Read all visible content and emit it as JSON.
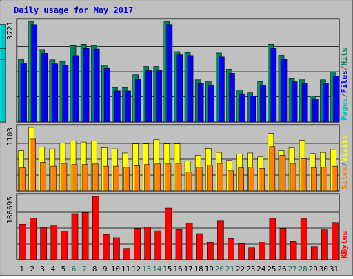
{
  "chart_data": {
    "type": "bar",
    "title": "Daily usage for May 2017",
    "x": [
      "1",
      "2",
      "3",
      "4",
      "5",
      "6",
      "7",
      "8",
      "9",
      "10",
      "11",
      "12",
      "13",
      "14",
      "15",
      "16",
      "17",
      "18",
      "19",
      "20",
      "21",
      "22",
      "23",
      "24",
      "25",
      "26",
      "27",
      "28",
      "29",
      "30",
      "31"
    ],
    "weekend_days": [
      "6",
      "7",
      "13",
      "14",
      "20",
      "21",
      "27",
      "28"
    ],
    "grid": true,
    "panels": [
      {
        "id": "pages-files-hits",
        "axis_max_label": "3721",
        "ylim": [
          0,
          3721
        ],
        "legend": [
          {
            "label": "Pages",
            "color": "#00c0c0"
          },
          {
            "label": "/",
            "color": "#505050"
          },
          {
            "label": "Files",
            "color": "#0000ff"
          },
          {
            "label": "/",
            "color": "#505050"
          },
          {
            "label": "Hits",
            "color": "#00805c"
          }
        ],
        "series": [
          {
            "name": "Hits",
            "color": "#00805c",
            "values": [
              2320,
              3721,
              2680,
              2300,
              2240,
              2820,
              2870,
              2830,
              2100,
              1270,
              1270,
              1740,
              2050,
              2050,
              3721,
              2600,
              2570,
              1560,
              1490,
              2550,
              1950,
              1190,
              1080,
              1500,
              2870,
              2460,
              1620,
              1560,
              950,
              1560,
              1850
            ]
          },
          {
            "name": "Files",
            "color": "#0000ff",
            "values": [
              2180,
              3600,
              2540,
              2150,
              2100,
              2450,
              2720,
              2700,
              1980,
              1150,
              1150,
              1580,
              1900,
              1900,
              3600,
              2480,
              2450,
              1420,
              1350,
              2400,
              1800,
              1040,
              960,
              1360,
              2720,
              2320,
              1490,
              1430,
              860,
              1420,
              1700
            ]
          },
          {
            "name": "Pages",
            "color": "#00c0c0",
            "values": [
              2180,
              3600,
              2540,
              2150,
              2100,
              2300,
              2720,
              2700,
              1980,
              1150,
              1150,
              1580,
              1900,
              1900,
              3600,
              2480,
              2450,
              1420,
              1350,
              2240,
              1800,
              1040,
              960,
              1360,
              2720,
              2320,
              1490,
              1430,
              860,
              1420,
              1700
            ]
          }
        ]
      },
      {
        "id": "sites-visits",
        "axis_max_label": "1103",
        "ylim": [
          0,
          1103
        ],
        "legend": [
          {
            "label": "Sites",
            "color": "#ff8000"
          },
          {
            "label": "/",
            "color": "#505050"
          },
          {
            "label": "Visits",
            "color": "#ffff00"
          }
        ],
        "series": [
          {
            "name": "Visits",
            "color": "#ffff00",
            "values": [
              700,
              1103,
              760,
              730,
              830,
              870,
              850,
              870,
              750,
              730,
              660,
              820,
              820,
              890,
              820,
              820,
              520,
              620,
              740,
              670,
              530,
              640,
              660,
              590,
              1000,
              700,
              750,
              880,
              650,
              670,
              720
            ]
          },
          {
            "name": "Sites",
            "color": "#ff8000",
            "values": [
              400,
              900,
              500,
              430,
              480,
              460,
              460,
              470,
              430,
              430,
              410,
              440,
              460,
              470,
              470,
              480,
              330,
              410,
              450,
              480,
              350,
              400,
              410,
              390,
              770,
              620,
              480,
              560,
              400,
              410,
              430
            ]
          }
        ]
      },
      {
        "id": "kbytes",
        "axis_max_label": "186695",
        "ylim": [
          0,
          186695
        ],
        "legend": [
          {
            "label": "KBytes",
            "color": "#ff0000"
          }
        ],
        "series": [
          {
            "name": "KBytes",
            "color": "#ff0000",
            "values": [
              105000,
              123000,
              95000,
              102000,
              84000,
              136000,
              139000,
              186695,
              75000,
              65000,
              33000,
              92000,
              96000,
              85000,
              152000,
              89000,
              108000,
              77000,
              50000,
              114000,
              62000,
              48000,
              35000,
              52000,
              123000,
              92000,
              54000,
              122000,
              39000,
              88000,
              110000
            ]
          }
        ]
      }
    ]
  }
}
